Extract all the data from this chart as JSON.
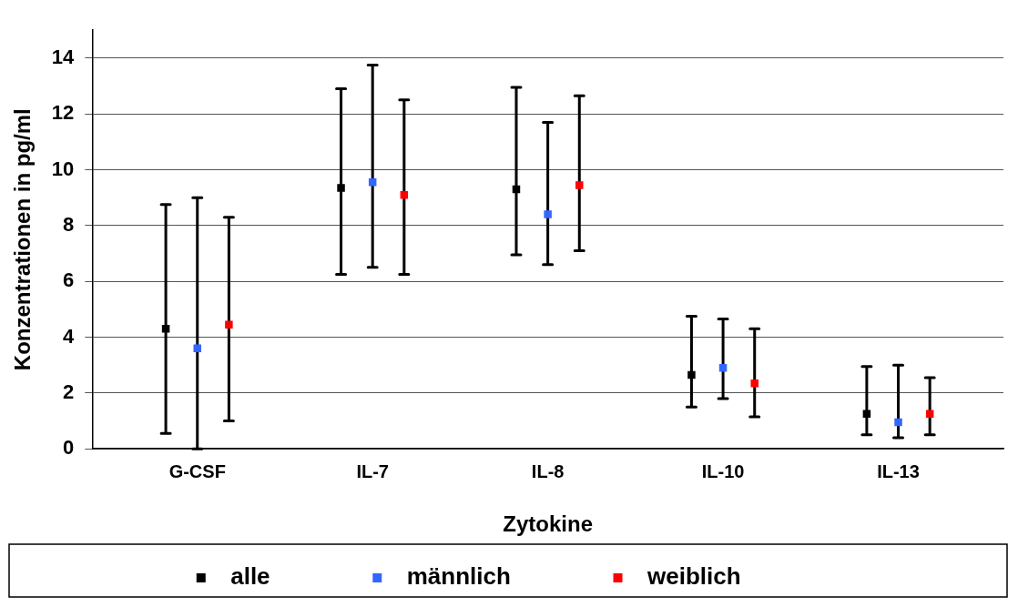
{
  "chart_data": {
    "type": "scatter",
    "xlabel": "Zytokine",
    "ylabel": "Konzentrationen in pg/ml",
    "categories": [
      "G-CSF",
      "IL-7",
      "IL-8",
      "IL-10",
      "IL-13"
    ],
    "ylim": [
      0,
      15
    ],
    "yticks": [
      0,
      2,
      4,
      6,
      8,
      10,
      12,
      14
    ],
    "grid": "y",
    "legend": "bottom",
    "marker": "square",
    "series": [
      {
        "name": "alle",
        "color": "#000000",
        "values": [
          4.3,
          9.35,
          9.3,
          2.65,
          1.25
        ],
        "errors": [
          [
            0.55,
            8.75
          ],
          [
            6.25,
            12.9
          ],
          [
            6.95,
            12.95
          ],
          [
            1.5,
            4.75
          ],
          [
            0.5,
            2.95
          ]
        ]
      },
      {
        "name": "männlich",
        "color": "#3366ff",
        "values": [
          3.6,
          9.55,
          8.4,
          2.9,
          0.95
        ],
        "errors": [
          [
            0,
            9.0
          ],
          [
            6.5,
            13.75
          ],
          [
            6.6,
            11.7
          ],
          [
            1.8,
            4.65
          ],
          [
            0.4,
            3.0
          ]
        ]
      },
      {
        "name": "weiblich",
        "color": "#ff0000",
        "values": [
          4.45,
          9.1,
          9.45,
          2.35,
          1.25
        ],
        "errors": [
          [
            1.0,
            8.3
          ],
          [
            6.25,
            12.5
          ],
          [
            7.1,
            12.65
          ],
          [
            1.15,
            4.3
          ],
          [
            0.5,
            2.55
          ]
        ]
      }
    ]
  }
}
